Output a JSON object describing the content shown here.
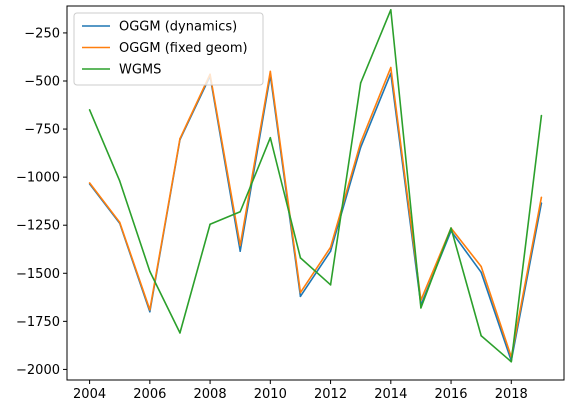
{
  "chart_data": {
    "type": "line",
    "title": "",
    "xlabel": "",
    "ylabel": "",
    "x": [
      2004,
      2005,
      2006,
      2007,
      2008,
      2009,
      2010,
      2011,
      2012,
      2013,
      2014,
      2015,
      2016,
      2017,
      2018,
      2019
    ],
    "xlim": [
      2003.25,
      2019.75
    ],
    "ylim": [
      -2055,
      -110
    ],
    "xticks": [
      2004,
      2006,
      2008,
      2010,
      2012,
      2014,
      2016,
      2018
    ],
    "yticks": [
      -2000,
      -1750,
      -1500,
      -1250,
      -1000,
      -750,
      -500,
      -250
    ],
    "legend_position": "upper-left",
    "grid": false,
    "series": [
      {
        "name": "OGGM (dynamics)",
        "color": "#1f77b4",
        "values": [
          -1035,
          -1240,
          -1700,
          -805,
          -475,
          -1385,
          -470,
          -1620,
          -1385,
          -845,
          -460,
          -1665,
          -1280,
          -1495,
          -1955,
          -1135
        ]
      },
      {
        "name": "OGGM (fixed geom)",
        "color": "#ff7f0e",
        "values": [
          -1030,
          -1235,
          -1690,
          -800,
          -465,
          -1355,
          -450,
          -1600,
          -1365,
          -820,
          -430,
          -1640,
          -1265,
          -1465,
          -1935,
          -1105
        ]
      },
      {
        "name": "WGMS",
        "color": "#2ca02c",
        "values": [
          -650,
          -1020,
          -1490,
          -1810,
          -1245,
          -1180,
          -795,
          -1420,
          -1560,
          -510,
          -130,
          -1680,
          -1265,
          -1825,
          -1960,
          -680
        ]
      }
    ]
  }
}
